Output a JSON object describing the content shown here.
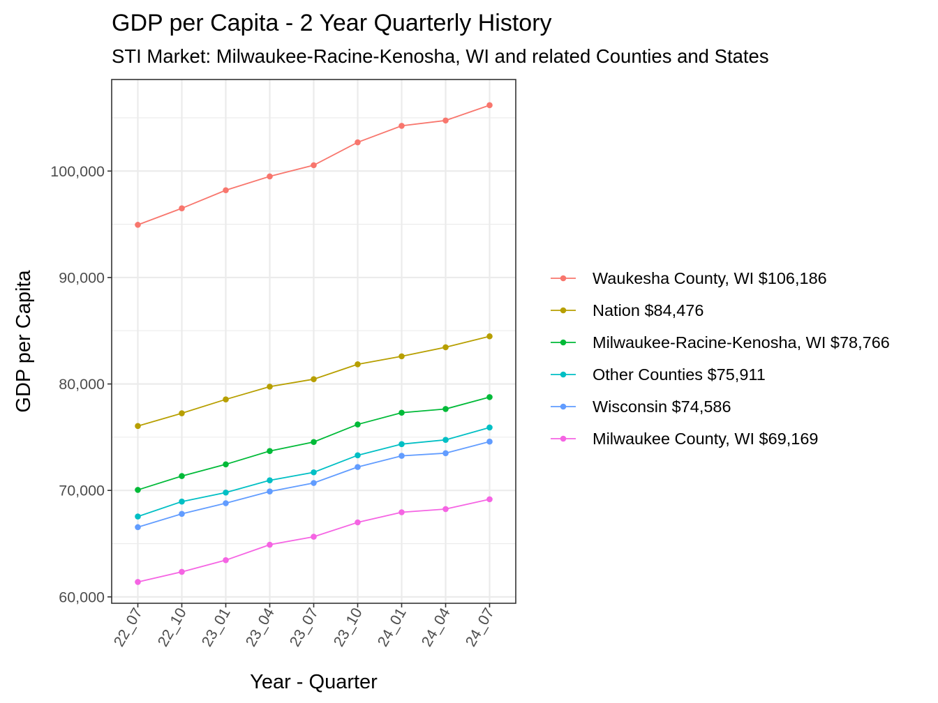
{
  "chart_data": {
    "type": "line",
    "title": "GDP per Capita - 2 Year Quarterly History",
    "subtitle": "STI Market: Milwaukee-Racine-Kenosha, WI and related Counties and States",
    "xlabel": "Year - Quarter",
    "ylabel": "GDP per Capita",
    "categories": [
      "22_07",
      "22_10",
      "23_01",
      "23_04",
      "23_07",
      "23_10",
      "24_01",
      "24_04",
      "24_07"
    ],
    "ylim": [
      59400,
      108600
    ],
    "yticks": [
      60000,
      70000,
      80000,
      90000,
      100000
    ],
    "ytick_labels": [
      "60,000",
      "70,000",
      "80,000",
      "90,000",
      "100,000"
    ],
    "grid": true,
    "legend_position": "right",
    "series": [
      {
        "name": "Waukesha County, WI $106,186",
        "color": "#F8766D",
        "values": [
          94950,
          96500,
          98200,
          99500,
          100550,
          102700,
          104250,
          104750,
          106186
        ]
      },
      {
        "name": "Nation $84,476",
        "color": "#B79F00",
        "values": [
          76050,
          77250,
          78550,
          79750,
          80450,
          81850,
          82600,
          83450,
          84476
        ]
      },
      {
        "name": "Milwaukee-Racine-Kenosha, WI $78,766",
        "color": "#00BA38",
        "values": [
          70050,
          71350,
          72450,
          73700,
          74550,
          76200,
          77300,
          77650,
          78766
        ]
      },
      {
        "name": "Other Counties $75,911",
        "color": "#00BFC4",
        "values": [
          67550,
          68950,
          69800,
          70950,
          71700,
          73300,
          74350,
          74750,
          75911
        ]
      },
      {
        "name": "Wisconsin $74,586",
        "color": "#619CFF",
        "values": [
          66550,
          67800,
          68800,
          69900,
          70700,
          72200,
          73250,
          73500,
          74586
        ]
      },
      {
        "name": "Milwaukee County, WI $69,169",
        "color": "#F564E3",
        "values": [
          61400,
          62350,
          63450,
          64900,
          65650,
          67000,
          67950,
          68250,
          69169
        ]
      }
    ]
  }
}
